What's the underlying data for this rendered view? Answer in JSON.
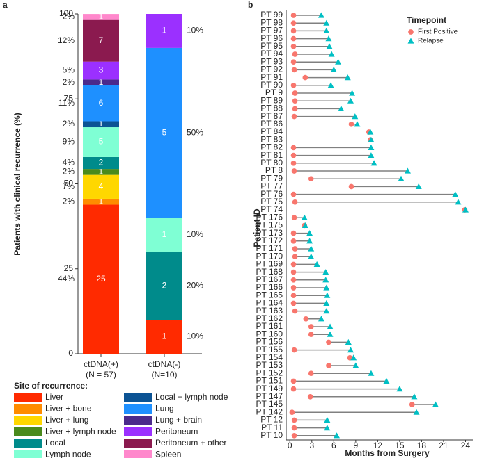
{
  "chart_data": [
    {
      "type": "stacked-bar",
      "panel_label": "a",
      "ylabel": "Patients with clinical recurrence (%)",
      "categories": [
        "ctDNA(+)",
        "ctDNA(-)"
      ],
      "category_sublabels": [
        "(N = 57)",
        "(N=10)"
      ],
      "ylim": [
        0,
        100
      ],
      "yticks": [
        0,
        25,
        50,
        75,
        100
      ],
      "legend_title": "Site of recurrence:",
      "series": [
        {
          "name": "Liver",
          "color": "#ff2a00",
          "values": [
            43.86,
            10
          ],
          "value_labels": [
            "44%",
            "10%"
          ],
          "counts": [
            25,
            1
          ]
        },
        {
          "name": "Liver + bone",
          "color": "#ff8c00",
          "values": [
            1.75,
            0
          ],
          "value_labels": [
            "2%",
            null
          ],
          "counts": [
            1,
            null
          ]
        },
        {
          "name": "Liver + lung",
          "color": "#ffd700",
          "values": [
            7.02,
            0
          ],
          "value_labels": [
            "7%",
            null
          ],
          "counts": [
            4,
            null
          ]
        },
        {
          "name": "Liver + lymph node",
          "color": "#4a8a1c",
          "values": [
            1.75,
            0
          ],
          "value_labels": [
            "2%",
            null
          ],
          "counts": [
            1,
            null
          ]
        },
        {
          "name": "Local",
          "color": "#008b8b",
          "values": [
            3.51,
            20
          ],
          "value_labels": [
            "4%",
            "20%"
          ],
          "counts": [
            2,
            2
          ]
        },
        {
          "name": "Lymph node",
          "color": "#7fffd4",
          "values": [
            8.77,
            10
          ],
          "value_labels": [
            "9%",
            "10%"
          ],
          "counts": [
            5,
            1
          ]
        },
        {
          "name": "Local + lymph node",
          "color": "#0b5394",
          "values": [
            1.75,
            0
          ],
          "value_labels": [
            "2%",
            null
          ],
          "counts": [
            1,
            null
          ]
        },
        {
          "name": "Lung",
          "color": "#1e90ff",
          "values": [
            10.53,
            50
          ],
          "value_labels": [
            "11%",
            "50%"
          ],
          "counts": [
            6,
            5
          ]
        },
        {
          "name": "Lung + brain",
          "color": "#4b2a8c",
          "values": [
            1.75,
            0
          ],
          "value_labels": [
            "2%",
            null
          ],
          "counts": [
            1,
            null
          ]
        },
        {
          "name": "Peritoneum",
          "color": "#9b30ff",
          "values": [
            5.26,
            10
          ],
          "value_labels": [
            "5%",
            "10%"
          ],
          "counts": [
            3,
            1
          ]
        },
        {
          "name": "Peritoneum + other",
          "color": "#8b1a4f",
          "values": [
            12.28,
            0
          ],
          "value_labels": [
            "12%",
            null
          ],
          "counts": [
            7,
            null
          ]
        },
        {
          "name": "Spleen",
          "color": "#ff88cc",
          "values": [
            1.75,
            0
          ],
          "value_labels": [
            "2%",
            null
          ],
          "counts": [
            1,
            null
          ]
        }
      ]
    },
    {
      "type": "dumbbell",
      "panel_label": "b",
      "xlabel": "Months from Surgery",
      "ylabel": "Patient ID",
      "xlim": [
        -0.5,
        25
      ],
      "xticks": [
        0,
        3,
        6,
        9,
        12,
        15,
        18,
        21,
        24
      ],
      "legend_title": "Timepoint",
      "connector_color": "#808080",
      "categories": [
        "PT 99",
        "PT 98",
        "PT 97",
        "PT 96",
        "PT 95",
        "PT 94",
        "PT 93",
        "PT 92",
        "PT 91",
        "PT 90",
        "PT 9",
        "PT 89",
        "PT 88",
        "PT 87",
        "PT 86",
        "PT 84",
        "PT 83",
        "PT 82",
        "PT 81",
        "PT 80",
        "PT 8",
        "PT 79",
        "PT 77",
        "PT 76",
        "PT 75",
        "PT 74",
        "PT 176",
        "PT 175",
        "PT 173",
        "PT 172",
        "PT 171",
        "PT 170",
        "PT 169",
        "PT 168",
        "PT 167",
        "PT 166",
        "PT 165",
        "PT 164",
        "PT 163",
        "PT 162",
        "PT 161",
        "PT 160",
        "PT 156",
        "PT 155",
        "PT 154",
        "PT 153",
        "PT 152",
        "PT 151",
        "PT 149",
        "PT 147",
        "PT 145",
        "PT 142",
        "PT 12",
        "PT 11",
        "PT 10"
      ],
      "series": [
        {
          "name": "First Positive",
          "color": "#f8766d",
          "marker": "circle",
          "values": [
            0.5,
            0.5,
            0.5,
            0.5,
            0.5,
            0.7,
            0.5,
            0.6,
            2.1,
            0.5,
            0.7,
            0.7,
            0.7,
            0.6,
            8.4,
            10.8,
            11.0,
            0.5,
            0.5,
            0.5,
            0.6,
            2.9,
            8.4,
            0.5,
            0.7,
            23.9,
            0.6,
            2.0,
            0.5,
            0.5,
            0.7,
            0.7,
            0.5,
            0.5,
            0.5,
            0.5,
            0.5,
            0.5,
            0.7,
            2.2,
            2.9,
            2.9,
            5.3,
            0.6,
            8.2,
            5.3,
            2.9,
            0.5,
            0.5,
            2.8,
            16.7,
            0.3,
            0.6,
            0.6,
            0.6
          ]
        },
        {
          "name": "Relapse",
          "color": "#00bfc4",
          "marker": "triangle",
          "values": [
            4.3,
            5.0,
            5.0,
            5.3,
            5.4,
            5.7,
            6.6,
            6.0,
            7.9,
            5.6,
            8.5,
            8.3,
            7.0,
            8.9,
            9.2,
            11.0,
            11.1,
            11.1,
            11.1,
            11.5,
            16.1,
            15.2,
            17.6,
            22.6,
            23.0,
            24.0,
            2.0,
            2.1,
            2.7,
            2.7,
            2.9,
            2.9,
            3.7,
            4.9,
            4.9,
            5.0,
            5.1,
            5.0,
            5.0,
            4.3,
            5.5,
            5.5,
            8.0,
            8.3,
            8.7,
            9.0,
            11.1,
            13.2,
            15.0,
            17.0,
            19.9,
            17.3,
            5.1,
            5.1,
            6.4
          ]
        }
      ]
    }
  ]
}
